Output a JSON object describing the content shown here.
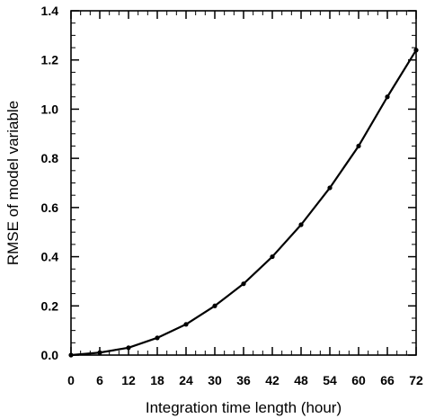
{
  "chart_data": {
    "type": "line",
    "title": "",
    "xlabel": "Integration time length (hour)",
    "ylabel": "RMSE of model variable",
    "xlim": [
      0,
      72
    ],
    "ylim": [
      0,
      1.4
    ],
    "xticks": [
      0,
      6,
      12,
      18,
      24,
      30,
      36,
      42,
      48,
      54,
      60,
      66,
      72
    ],
    "yticks": [
      0.0,
      0.2,
      0.4,
      0.6,
      0.8,
      1.0,
      1.2,
      1.4
    ],
    "xtick_labels": [
      "0",
      "6",
      "12",
      "18",
      "24",
      "30",
      "36",
      "42",
      "48",
      "54",
      "60",
      "66",
      "72"
    ],
    "ytick_labels": [
      "0.0",
      "0.2",
      "0.4",
      "0.6",
      "0.8",
      "1.0",
      "1.2",
      "1.4"
    ],
    "grid": false,
    "legend": "none",
    "line_color": "#000000",
    "series": [
      {
        "x": [
          0,
          6,
          12,
          18,
          24,
          30,
          36,
          42,
          48,
          54,
          60,
          66,
          72
        ],
        "values": [
          0.0,
          0.01,
          0.03,
          0.07,
          0.125,
          0.2,
          0.29,
          0.4,
          0.53,
          0.68,
          0.85,
          1.05,
          1.24
        ]
      }
    ]
  }
}
